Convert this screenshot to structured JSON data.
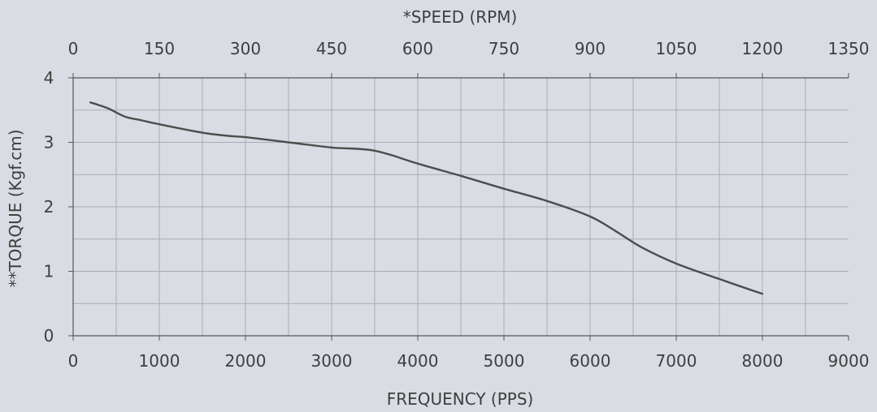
{
  "chart_data": {
    "type": "line",
    "x_axis": {
      "label": "FREQUENCY (PPS)",
      "ticks": [
        0,
        1000,
        2000,
        3000,
        4000,
        5000,
        6000,
        7000,
        8000,
        9000
      ],
      "range": [
        0,
        9000
      ]
    },
    "x2_axis": {
      "label": "*SPEED (RPM)",
      "ticks": [
        0,
        150,
        300,
        450,
        600,
        750,
        900,
        1050,
        1200,
        1350
      ],
      "range": [
        0,
        1350
      ]
    },
    "y_axis": {
      "label": "**TORQUE (Kgf.cm)",
      "ticks": [
        0,
        1,
        2,
        3,
        4
      ],
      "range": [
        0,
        4
      ]
    },
    "grid": true,
    "series": [
      {
        "x": [
          200,
          400,
          600,
          800,
          1000,
          1500,
          1800,
          2000,
          2500,
          3000,
          3300,
          3500,
          3700,
          4000,
          4500,
          5000,
          5500,
          6000,
          6300,
          6600,
          7000,
          7500,
          8000
        ],
        "y": [
          3.62,
          3.53,
          3.4,
          3.34,
          3.28,
          3.15,
          3.1,
          3.08,
          3.0,
          2.92,
          2.9,
          2.87,
          2.8,
          2.67,
          2.48,
          2.28,
          2.09,
          1.85,
          1.62,
          1.37,
          1.12,
          0.88,
          0.65
        ]
      }
    ],
    "colors": {
      "background": "#d9dde3",
      "grid": "#a7adb5",
      "axis": "#555555",
      "line": "#4d4d4d",
      "text": "#3e3e3e"
    }
  }
}
